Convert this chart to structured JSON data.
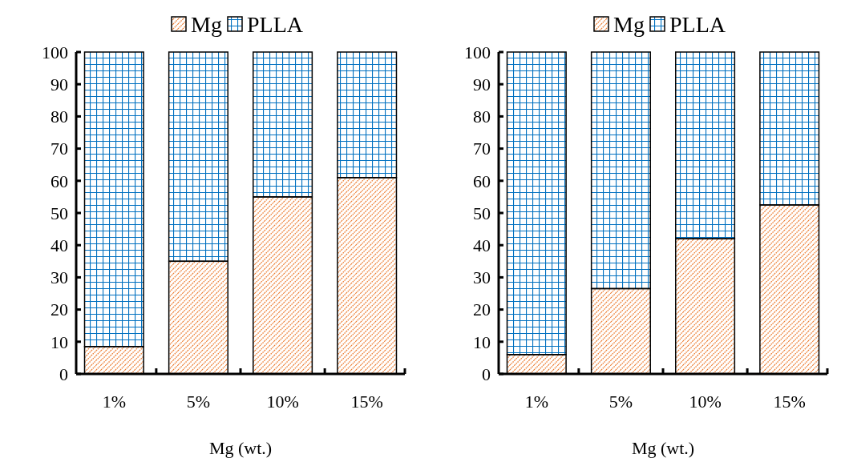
{
  "chart_data": [
    {
      "type": "bar",
      "stacked": true,
      "categories": [
        "1%",
        "5%",
        "10%",
        "15%"
      ],
      "xlabel": "Mg (wt.)",
      "ylim": [
        0,
        100
      ],
      "yticks": [
        0,
        10,
        20,
        30,
        40,
        50,
        60,
        70,
        80,
        90,
        100
      ],
      "legend": "top",
      "grid": false,
      "series": [
        {
          "name": "Mg",
          "color": "#ed7d31",
          "values": [
            8.5,
            35,
            55,
            61
          ]
        },
        {
          "name": "PLLA",
          "color": "#0070c0",
          "values": [
            91.5,
            65,
            45,
            39
          ]
        }
      ]
    },
    {
      "type": "bar",
      "stacked": true,
      "categories": [
        "1%",
        "5%",
        "10%",
        "15%"
      ],
      "xlabel": "Mg (wt.)",
      "ylim": [
        0,
        100
      ],
      "yticks": [
        0,
        10,
        20,
        30,
        40,
        50,
        60,
        70,
        80,
        90,
        100
      ],
      "legend": "top",
      "grid": false,
      "series": [
        {
          "name": "Mg",
          "color": "#ed7d31",
          "values": [
            6,
            26.5,
            42,
            52.5
          ]
        },
        {
          "name": "PLLA",
          "color": "#0070c0",
          "values": [
            94,
            73.5,
            58,
            47.5
          ]
        }
      ]
    }
  ]
}
